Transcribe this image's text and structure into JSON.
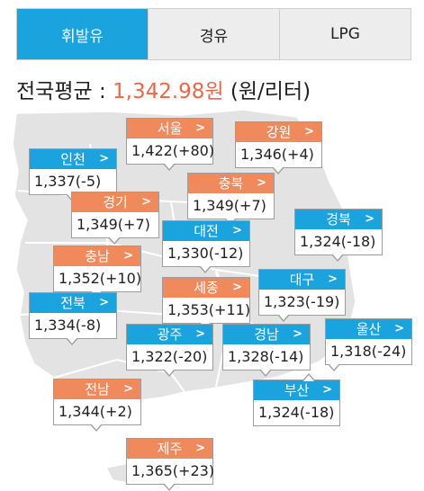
{
  "tabs": [
    {
      "label": "휘발유",
      "active": true
    },
    {
      "label": "경유",
      "active": false
    },
    {
      "label": "LPG",
      "active": false
    }
  ],
  "average": {
    "label": "전국평균 : ",
    "price": "1,342.98",
    "currency": "원",
    "unit": " (원/리터)"
  },
  "colors": {
    "active_tab": "#1aa3dc",
    "orange_badge": "#f08a5d",
    "blue_badge": "#1aa3dc",
    "price_highlight": "#e8694a",
    "map_land": "#e3e3e3"
  },
  "icons": {
    "chevron": "chevron-right-icon"
  },
  "regions": {
    "seoul": {
      "name": "서울",
      "value": "1,422(+80)"
    },
    "gangwon": {
      "name": "강원",
      "value": "1,346(+4)"
    },
    "incheon": {
      "name": "인천",
      "value": "1,337(-5)"
    },
    "chungbuk": {
      "name": "충북",
      "value": "1,349(+7)"
    },
    "gyeonggi": {
      "name": "경기",
      "value": "1,349(+7)"
    },
    "daejeon": {
      "name": "대전",
      "value": "1,330(-12)"
    },
    "gyeongbuk": {
      "name": "경북",
      "value": "1,324(-18)"
    },
    "chungnam": {
      "name": "충남",
      "value": "1,352(+10)"
    },
    "daegu": {
      "name": "대구",
      "value": "1,323(-19)"
    },
    "sejong": {
      "name": "세종",
      "value": "1,353(+11)"
    },
    "jeonbuk": {
      "name": "전북",
      "value": "1,334(-8)"
    },
    "gwangju": {
      "name": "광주",
      "value": "1,322(-20)"
    },
    "gyeongnam": {
      "name": "경남",
      "value": "1,328(-14)"
    },
    "ulsan": {
      "name": "울산",
      "value": "1,318(-24)"
    },
    "jeonnam": {
      "name": "전남",
      "value": "1,344(+2)"
    },
    "busan": {
      "name": "부산",
      "value": "1,324(-18)"
    },
    "jeju": {
      "name": "제주",
      "value": "1,365(+23)"
    }
  }
}
